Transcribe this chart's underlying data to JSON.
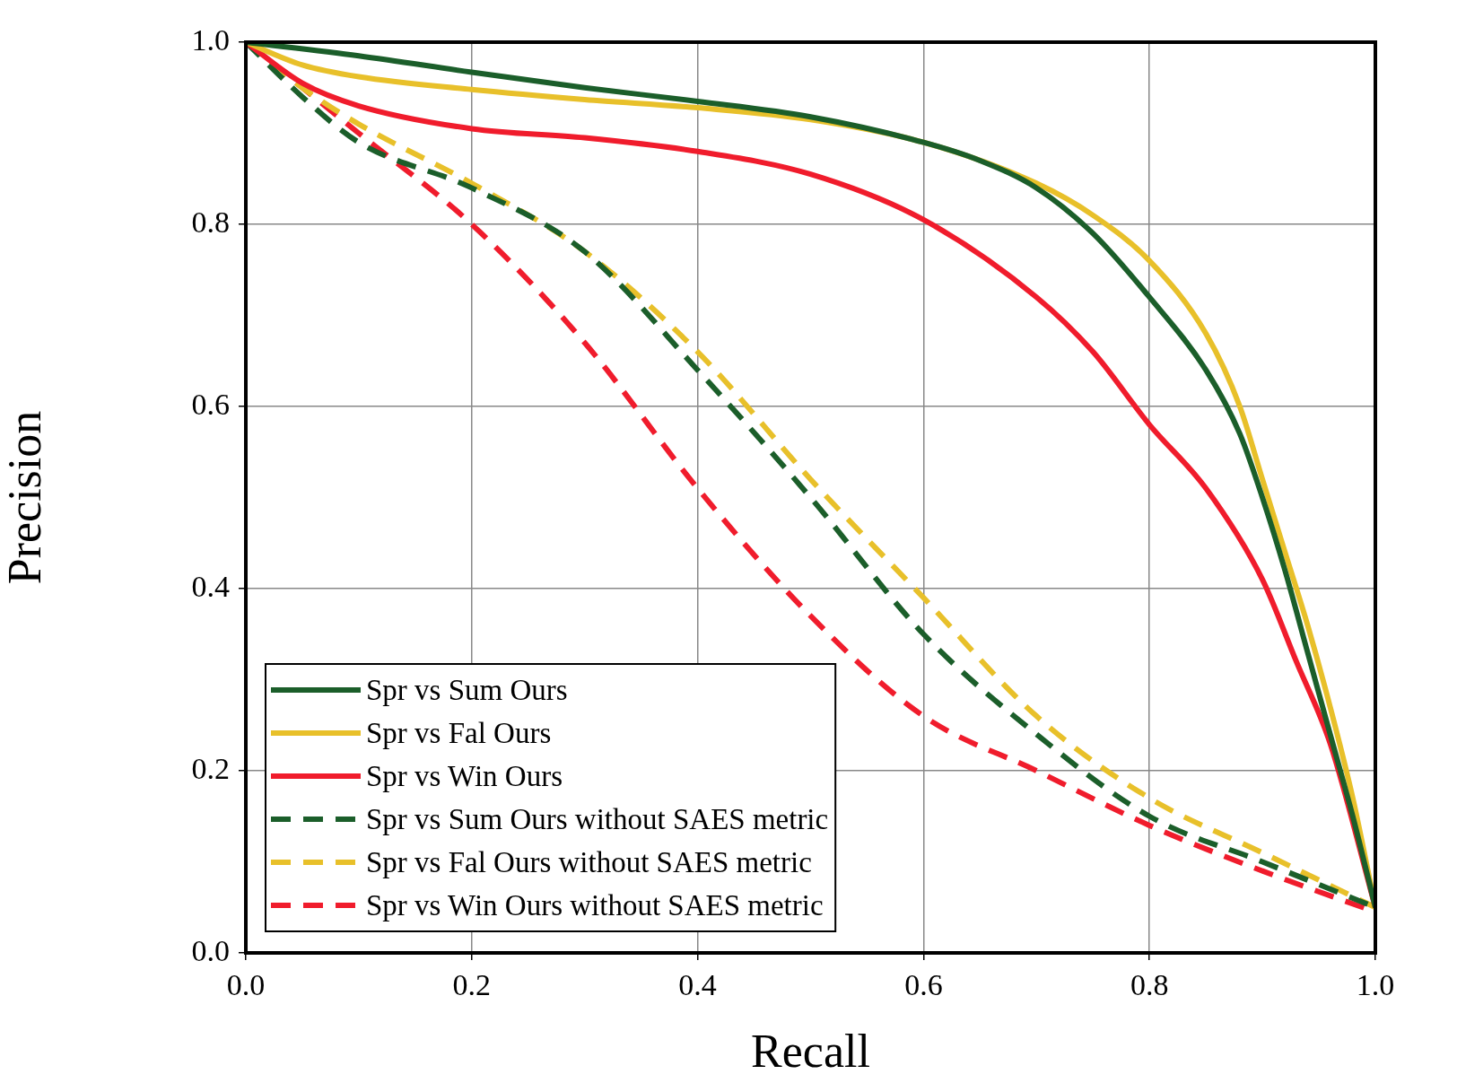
{
  "chart_data": {
    "type": "line",
    "xlabel": "Recall",
    "ylabel": "Precision",
    "xlim": [
      0,
      1
    ],
    "ylim": [
      0,
      1
    ],
    "xticks": [
      {
        "value": 0,
        "label": "0.0"
      },
      0.2,
      0.4,
      0.6,
      0.8,
      {
        "value": 1,
        "label": "1.0"
      }
    ],
    "yticks": [
      {
        "value": 0,
        "label": "0.0"
      },
      0.2,
      0.4,
      0.6,
      0.8,
      {
        "value": 1,
        "label": "1.0"
      }
    ],
    "grid": true,
    "legend": "bottom left",
    "marker": "none",
    "series": [
      {
        "name": "Spr vs Sum Ours",
        "color": "#1b5e2a",
        "line_style": "solid",
        "x": [
          0,
          0.1,
          0.2,
          0.3,
          0.4,
          0.5,
          0.6,
          0.65,
          0.7,
          0.75,
          0.8,
          0.85,
          0.88,
          0.9,
          0.92,
          0.94,
          0.96,
          0.98,
          1.0
        ],
        "values": [
          1.0,
          0.985,
          0.967,
          0.95,
          0.935,
          0.918,
          0.89,
          0.87,
          0.84,
          0.79,
          0.72,
          0.64,
          0.57,
          0.5,
          0.42,
          0.33,
          0.24,
          0.15,
          0.05
        ]
      },
      {
        "name": "Spr vs Fal Ours",
        "color": "#e8c02a",
        "line_style": "solid",
        "x": [
          0,
          0.05,
          0.1,
          0.2,
          0.3,
          0.4,
          0.5,
          0.6,
          0.7,
          0.75,
          0.8,
          0.85,
          0.88,
          0.9,
          0.92,
          0.94,
          0.96,
          0.98,
          1.0
        ],
        "values": [
          1.0,
          0.975,
          0.962,
          0.948,
          0.937,
          0.928,
          0.915,
          0.89,
          0.845,
          0.81,
          0.76,
          0.68,
          0.6,
          0.52,
          0.44,
          0.36,
          0.27,
          0.17,
          0.05
        ]
      },
      {
        "name": "Spr vs Win Ours",
        "color": "#f01c2c",
        "line_style": "solid",
        "x": [
          0,
          0.05,
          0.1,
          0.2,
          0.3,
          0.4,
          0.5,
          0.6,
          0.7,
          0.75,
          0.8,
          0.85,
          0.9,
          0.93,
          0.96,
          1.0
        ],
        "values": [
          1.0,
          0.955,
          0.93,
          0.905,
          0.895,
          0.88,
          0.855,
          0.805,
          0.72,
          0.66,
          0.58,
          0.51,
          0.41,
          0.32,
          0.23,
          0.05
        ]
      },
      {
        "name": "Spr vs Sum Ours without SAES metric",
        "color": "#1b5e2a",
        "line_style": "dashed",
        "x": [
          0,
          0.05,
          0.1,
          0.2,
          0.3,
          0.4,
          0.5,
          0.6,
          0.7,
          0.8,
          0.9,
          1.0
        ],
        "values": [
          1.0,
          0.94,
          0.89,
          0.84,
          0.77,
          0.64,
          0.5,
          0.35,
          0.24,
          0.15,
          0.1,
          0.05
        ]
      },
      {
        "name": "Spr vs Fal Ours without SAES metric",
        "color": "#e8c02a",
        "line_style": "dashed",
        "x": [
          0,
          0.05,
          0.1,
          0.2,
          0.3,
          0.4,
          0.5,
          0.6,
          0.7,
          0.8,
          0.9,
          1.0
        ],
        "values": [
          1.0,
          0.95,
          0.91,
          0.845,
          0.77,
          0.66,
          0.52,
          0.39,
          0.26,
          0.17,
          0.11,
          0.05
        ]
      },
      {
        "name": "Spr vs Win Ours without SAES metric",
        "color": "#f01c2c",
        "line_style": "dashed",
        "x": [
          0,
          0.05,
          0.1,
          0.2,
          0.3,
          0.4,
          0.5,
          0.6,
          0.7,
          0.8,
          0.9,
          1.0
        ],
        "values": [
          1.0,
          0.95,
          0.9,
          0.8,
          0.67,
          0.51,
          0.37,
          0.26,
          0.2,
          0.14,
          0.09,
          0.045
        ]
      }
    ]
  }
}
